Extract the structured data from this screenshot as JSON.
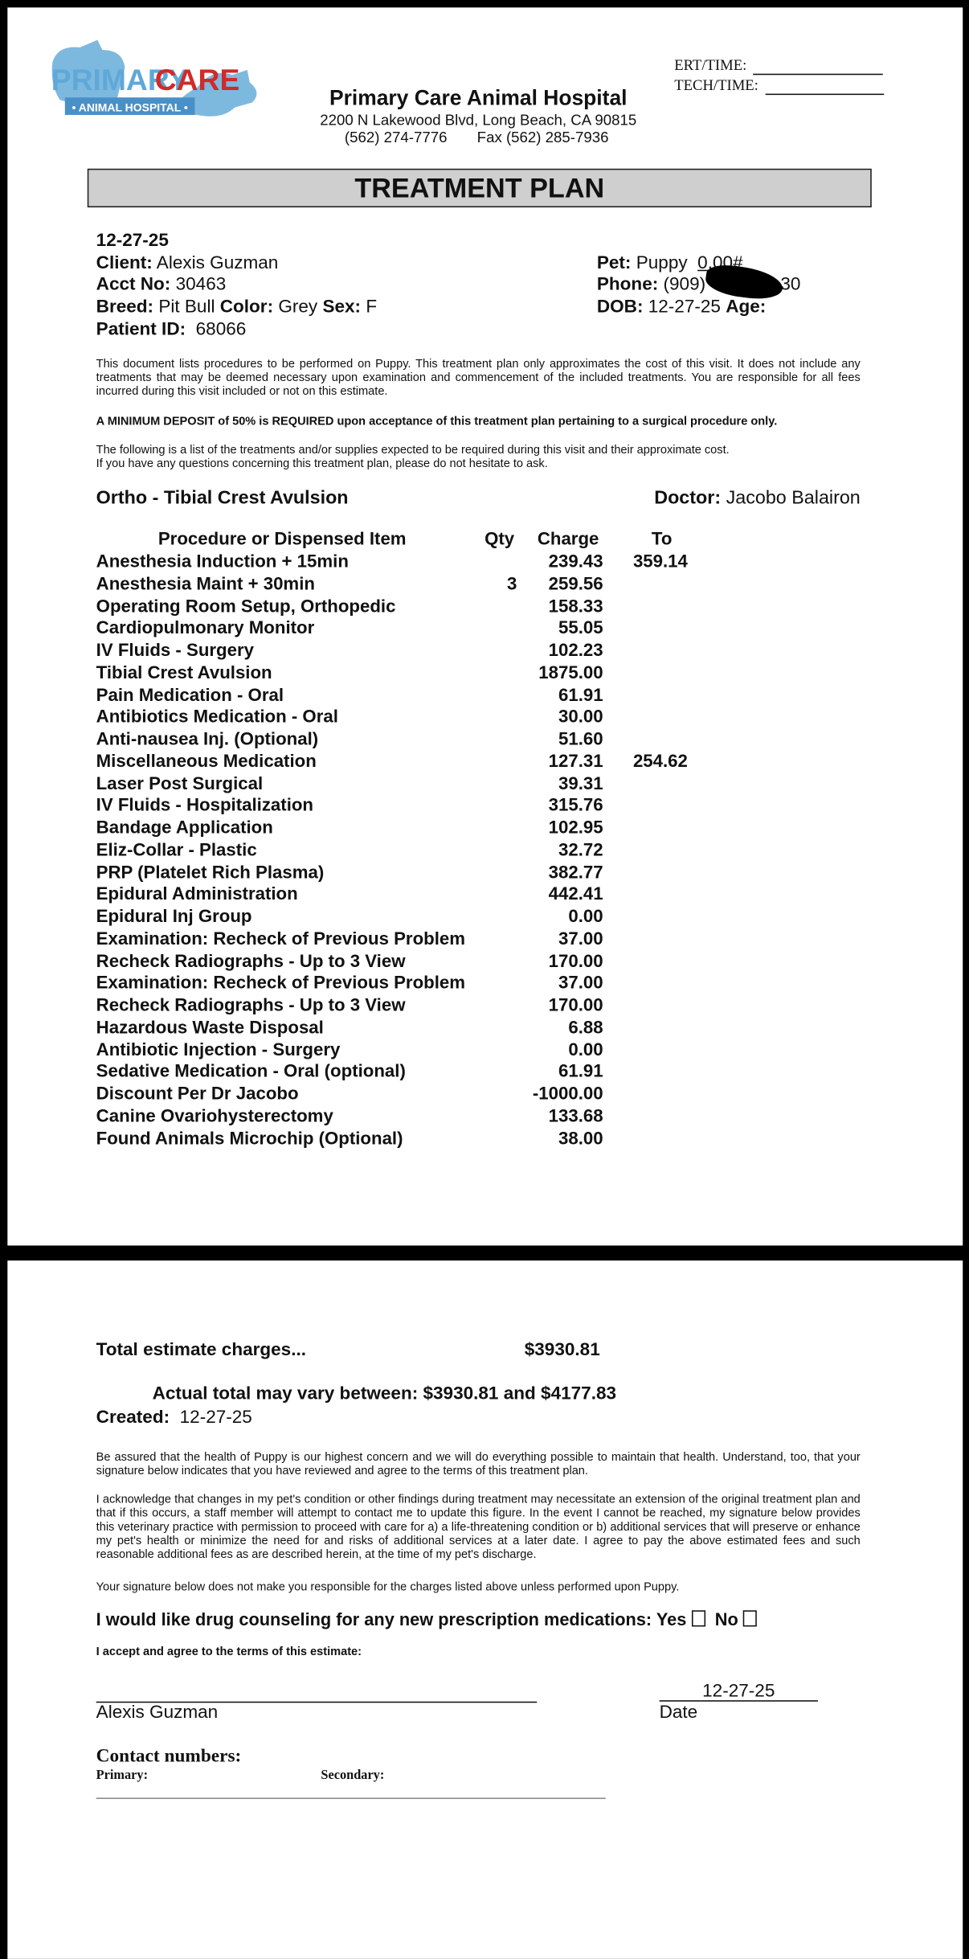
{
  "header": {
    "logo_primary": "PRIMARY",
    "logo_care": "CARE",
    "logo_sub": "• ANIMAL HOSPITAL •",
    "ert_label": "ERT/TIME:",
    "tech_label": "TECH/TIME:",
    "hospital_name": "Primary Care Animal Hospital",
    "address": "2200 N Lakewood Blvd, Long Beach, CA 90815",
    "phone": "(562) 274-7776",
    "fax": "Fax (562) 285-7936"
  },
  "title": "TREATMENT PLAN",
  "info": {
    "date": "12-27-25",
    "client_label": "Client:",
    "client": "Alexis Guzman",
    "acct_label": "Acct No:",
    "acct": "30463",
    "breed_label": "Breed:",
    "breed": "Pit Bull",
    "color_label": "Color:",
    "color": "Grey",
    "sex_label": "Sex:",
    "sex": "F",
    "patient_id_label": "Patient ID:",
    "patient_id": "68066",
    "pet_label": "Pet:",
    "pet": "Puppy",
    "weight": "0.00#",
    "phone_label": "Phone:",
    "phone_start": "(909)",
    "phone_end": "30",
    "dob_label": "DOB:",
    "dob": "12-27-25",
    "age_label": "Age:"
  },
  "paragraphs": {
    "intro": "This document lists procedures to be performed on Puppy.  This treatment plan only approximates the cost of this visit.  It does not include any treatments that may be deemed necessary upon examination and commencement of the included treatments.  You are responsible for all fees incurred during this visit included or not on this estimate.",
    "deposit": "A MINIMUM DEPOSIT of 50% is REQUIRED upon acceptance of this treatment plan pertaining to a surgical procedure only.",
    "list_line1": "The following is a list of the treatments and/or supplies expected to be required during this visit and their approximate cost.",
    "list_line2": "If you have any questions concerning this treatment plan, please do not hesitate to ask."
  },
  "procedure": "Ortho - Tibial Crest Avulsion",
  "doctor_label": "Doctor:",
  "doctor": "Jacobo Balairon",
  "table": {
    "headers": [
      "Procedure or Dispensed Item",
      "Qty",
      "Charge",
      "To"
    ],
    "rows": [
      [
        "Anesthesia Induction + 15min",
        null,
        "239.43",
        "359.14"
      ],
      [
        "Anesthesia Maint + 30min",
        "3",
        "259.56",
        null
      ],
      [
        "Operating Room Setup, Orthopedic",
        null,
        "158.33",
        null
      ],
      [
        "Cardiopulmonary Monitor",
        null,
        "55.05",
        null
      ],
      [
        "IV Fluids - Surgery",
        null,
        "102.23",
        null
      ],
      [
        "Tibial Crest Avulsion",
        null,
        "1875.00",
        null
      ],
      [
        "Pain Medication - Oral",
        null,
        "61.91",
        null
      ],
      [
        "Antibiotics Medication - Oral",
        null,
        "30.00",
        null
      ],
      [
        "Anti-nausea Inj. (Optional)",
        null,
        "51.60",
        null
      ],
      [
        "Miscellaneous Medication",
        null,
        "127.31",
        "254.62"
      ],
      [
        "Laser Post Surgical",
        null,
        "39.31",
        null
      ],
      [
        "IV Fluids - Hospitalization",
        null,
        "315.76",
        null
      ],
      [
        "Bandage Application",
        null,
        "102.95",
        null
      ],
      [
        "Eliz-Collar - Plastic",
        null,
        "32.72",
        null
      ],
      [
        "PRP (Platelet Rich Plasma)",
        null,
        "382.77",
        null
      ],
      [
        "Epidural Administration",
        null,
        "442.41",
        null
      ],
      [
        "Epidural Inj Group",
        null,
        "0.00",
        null
      ],
      [
        "Examination: Recheck of Previous Problem",
        null,
        "37.00",
        null
      ],
      [
        "Recheck Radiographs - Up to 3 View",
        null,
        "170.00",
        null
      ],
      [
        "Examination: Recheck of Previous Problem",
        null,
        "37.00",
        null
      ],
      [
        "Recheck Radiographs - Up to 3 View",
        null,
        "170.00",
        null
      ],
      [
        "Hazardous Waste Disposal",
        null,
        "6.88",
        null
      ],
      [
        "Antibiotic Injection - Surgery",
        null,
        "0.00",
        null
      ],
      [
        "Sedative Medication - Oral (optional)",
        null,
        "61.91",
        null
      ],
      [
        "Discount Per Dr Jacobo",
        null,
        "-1000.00",
        null
      ],
      [
        "Canine Ovariohysterectomy",
        null,
        "133.68",
        null
      ],
      [
        "Found Animals Microchip (Optional)",
        null,
        "38.00",
        null
      ]
    ]
  },
  "totals": {
    "label": "Total estimate charges...",
    "value": "$3930.81",
    "range": "Actual total may vary between: $3930.81 and $4177.83",
    "created_label": "Created:",
    "created": "12-27-25"
  },
  "terms": {
    "assured": "Be assured that the health of Puppy is our highest concern and we will do everything possible to maintain that health.  Understand, too, that your signature below indicates that you have reviewed and agree to the terms of this treatment plan.",
    "acknowledge": "I acknowledge that changes in my pet's condition or other findings during treatment may necessitate an extension of the original treatment plan and that if this occurs, a staff member will attempt to contact me to update this figure.  In the event I cannot be reached, my signature below provides this veterinary practice with permission to proceed with care for a) a life-threatening condition or b) additional services that will preserve or enhance my pet's health or minimize the need for and risks of additional services at a later date.  I agree to pay the above estimated fees and such reasonable additional fees as are described herein, at the time of my pet's discharge.",
    "signature_note": "Your signature below does not make you responsible for the charges listed above unless performed upon Puppy.",
    "counseling": "I would like drug counseling for any new prescription medications:",
    "yes": "Yes",
    "no": "No",
    "accept": "I accept and agree to the terms of this estimate:"
  },
  "signature": {
    "date": "12-27-25",
    "name": "Alexis Guzman",
    "date_label": "Date"
  },
  "contact": {
    "title": "Contact numbers:",
    "primary": "Primary:",
    "secondary": "Secondary:"
  }
}
